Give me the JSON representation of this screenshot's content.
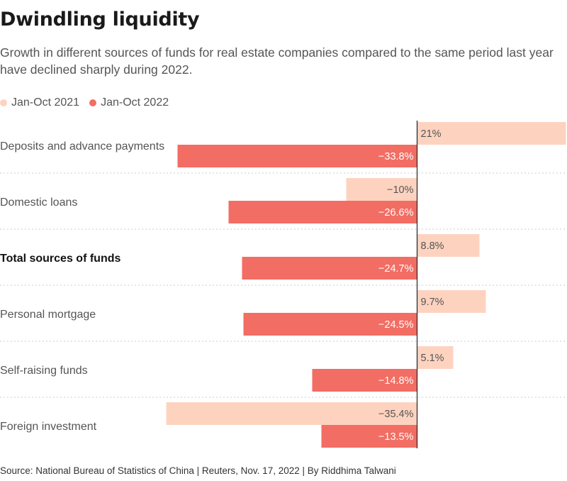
{
  "chart_data": {
    "type": "bar",
    "orientation": "horizontal",
    "title": "Dwindling liquidity",
    "subtitle": "Growth in different sources of funds for real estate companies compared to the same period last year have declined sharply during 2022.",
    "source": "Source: National Bureau of Statistics of China | Reuters, Nov. 17, 2022 | By Riddhima Talwani",
    "categories": [
      "Deposits and advance payments",
      "Domestic loans",
      "Total sources of funds",
      "Personal mortgage",
      "Self-raising funds",
      "Foreign investment"
    ],
    "emphasized_category": "Total sources of funds",
    "series": [
      {
        "name": "Jan-Oct 2021",
        "color": "#fdd3c0",
        "values": [
          21,
          -10,
          8.8,
          9.7,
          5.1,
          -35.4
        ],
        "labels": [
          "21%",
          "−10%",
          "8.8%",
          "9.7%",
          "5.1%",
          "−35.4%"
        ]
      },
      {
        "name": "Jan-Oct 2022",
        "color": "#f26d63",
        "values": [
          -33.8,
          -26.6,
          -24.7,
          -24.5,
          -14.8,
          -13.5
        ],
        "labels": [
          "−33.8%",
          "−26.6%",
          "−24.7%",
          "−24.5%",
          "−14.8%",
          "−13.5%"
        ]
      }
    ],
    "xlim": [
      -35.4,
      21
    ],
    "zero_line": true,
    "legend_position": "top-left"
  }
}
